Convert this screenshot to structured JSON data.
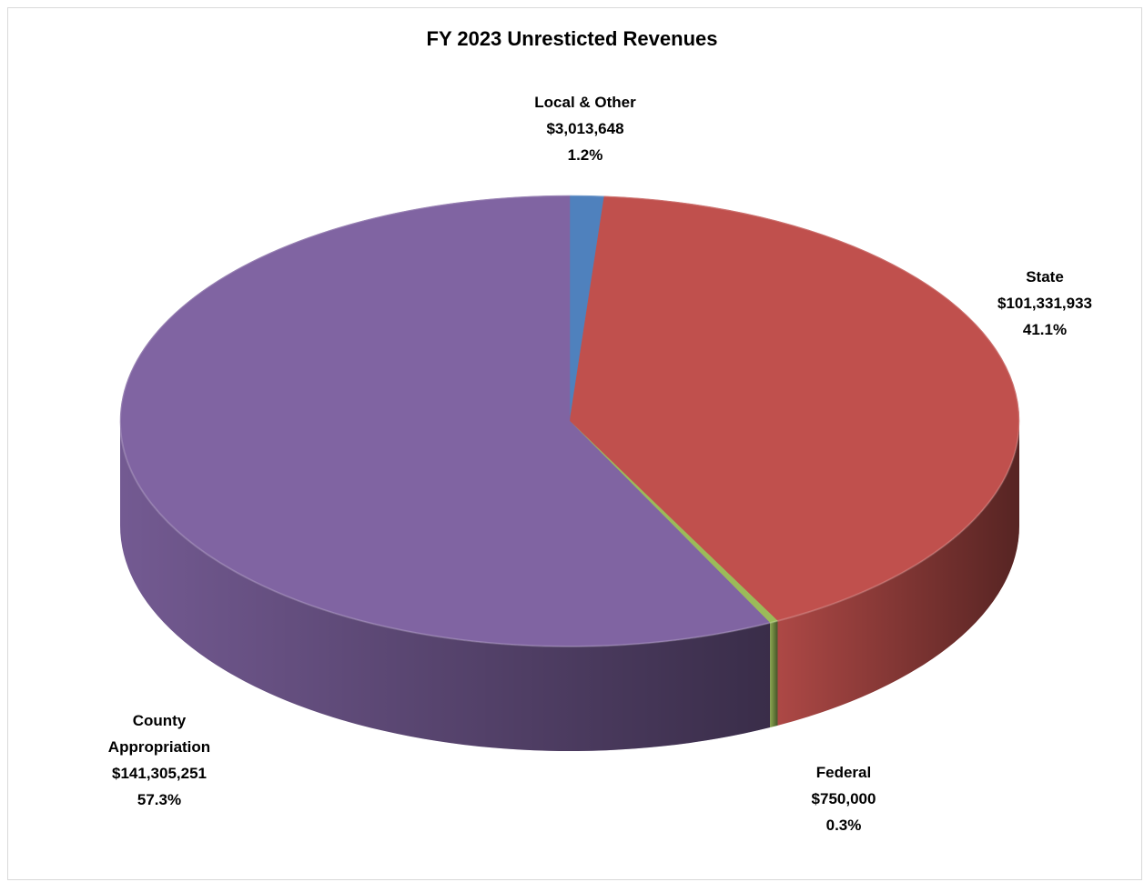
{
  "chart_data": {
    "type": "pie",
    "title": "FY 2023 Unresticted Revenues",
    "three_d": true,
    "slices": [
      {
        "name": "Local & Other",
        "name_lines": [
          "Local & Other"
        ],
        "value": 3013648,
        "value_label": "$3,013,648",
        "percent": 1.2,
        "percent_label": "1.2%",
        "color": "#4f81bd"
      },
      {
        "name": "State",
        "name_lines": [
          "State"
        ],
        "value": 101331933,
        "value_label": "$101,331,933",
        "percent": 41.1,
        "percent_label": "41.1%",
        "color": "#c0504d"
      },
      {
        "name": "Federal",
        "name_lines": [
          "Federal"
        ],
        "value": 750000,
        "value_label": "$750,000",
        "percent": 0.3,
        "percent_label": "0.3%",
        "color": "#9bbb59"
      },
      {
        "name": "County Appropriation",
        "name_lines": [
          "County",
          "Appropriation"
        ],
        "value": 141305251,
        "value_label": "$141,305,251",
        "percent": 57.3,
        "percent_label": "57.3%",
        "color": "#8064a2"
      }
    ]
  }
}
